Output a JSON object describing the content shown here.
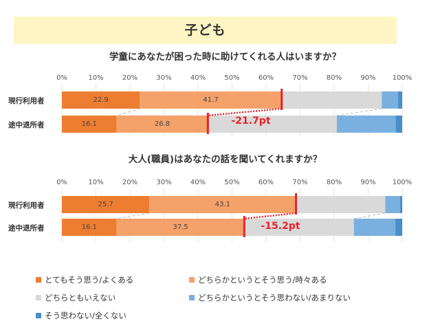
{
  "banner": {
    "title": "子ども"
  },
  "colors": [
    "#ed7d31",
    "#f4a16a",
    "#d9d9d9",
    "#7ab0df",
    "#4a8ec9"
  ],
  "legend": [
    "とてもそう思う/よくある",
    "どちらかというとそう思う/時々ある",
    "どちらともいえない",
    "どちらかというとそう思わない/あまりない",
    "そう思わない/全くない"
  ],
  "chart_data": [
    {
      "type": "bar",
      "orientation": "horizontal",
      "stacked": true,
      "title": "学童にあなたが困った時に助けてくれる人はいますか？",
      "x_ticks": [
        "0%",
        "10%",
        "20%",
        "30%",
        "40%",
        "50%",
        "60%",
        "70%",
        "80%",
        "90%",
        "100%"
      ],
      "xlim": [
        0,
        100
      ],
      "categories": [
        "現行利用者",
        "途中退所者"
      ],
      "series": [
        {
          "name": "とてもそう思う/よくある",
          "values": [
            22.9,
            16.1
          ]
        },
        {
          "name": "どちらかというとそう思う/時々ある",
          "values": [
            41.7,
            26.8
          ]
        },
        {
          "name": "どちらともいえない",
          "values": [
            29.4,
            37.9
          ]
        },
        {
          "name": "どちらかというとそう思わない/あまりない",
          "values": [
            4.8,
            17.3
          ]
        },
        {
          "name": "そう思わない/全くない",
          "values": [
            1.2,
            1.9
          ]
        }
      ],
      "data_labels": [
        [
          "22.9",
          "41.7"
        ],
        [
          "16.1",
          "26.8"
        ]
      ],
      "annotation": "-21.7pt"
    },
    {
      "type": "bar",
      "orientation": "horizontal",
      "stacked": true,
      "title": "大人(職員)はあなたの話を聞いてくれますか？",
      "x_ticks": [
        "0%",
        "10%",
        "20%",
        "30%",
        "40%",
        "50%",
        "60%",
        "70%",
        "80%",
        "90%",
        "100%"
      ],
      "xlim": [
        0,
        100
      ],
      "categories": [
        "現行利用者",
        "途中退所者"
      ],
      "series": [
        {
          "name": "とてもそう思う/よくある",
          "values": [
            25.7,
            16.1
          ]
        },
        {
          "name": "どちらかというとそう思う/時々ある",
          "values": [
            43.1,
            37.5
          ]
        },
        {
          "name": "どちらともいえない",
          "values": [
            26.2,
            32.2
          ]
        },
        {
          "name": "どちらかというとそう思わない/あまりない",
          "values": [
            4.4,
            12.2
          ]
        },
        {
          "name": "そう思わない/全くない",
          "values": [
            0.6,
            2.0
          ]
        }
      ],
      "data_labels": [
        [
          "25.7",
          "43.1"
        ],
        [
          "16.1",
          "37.5"
        ]
      ],
      "annotation": "-15.2pt"
    }
  ]
}
